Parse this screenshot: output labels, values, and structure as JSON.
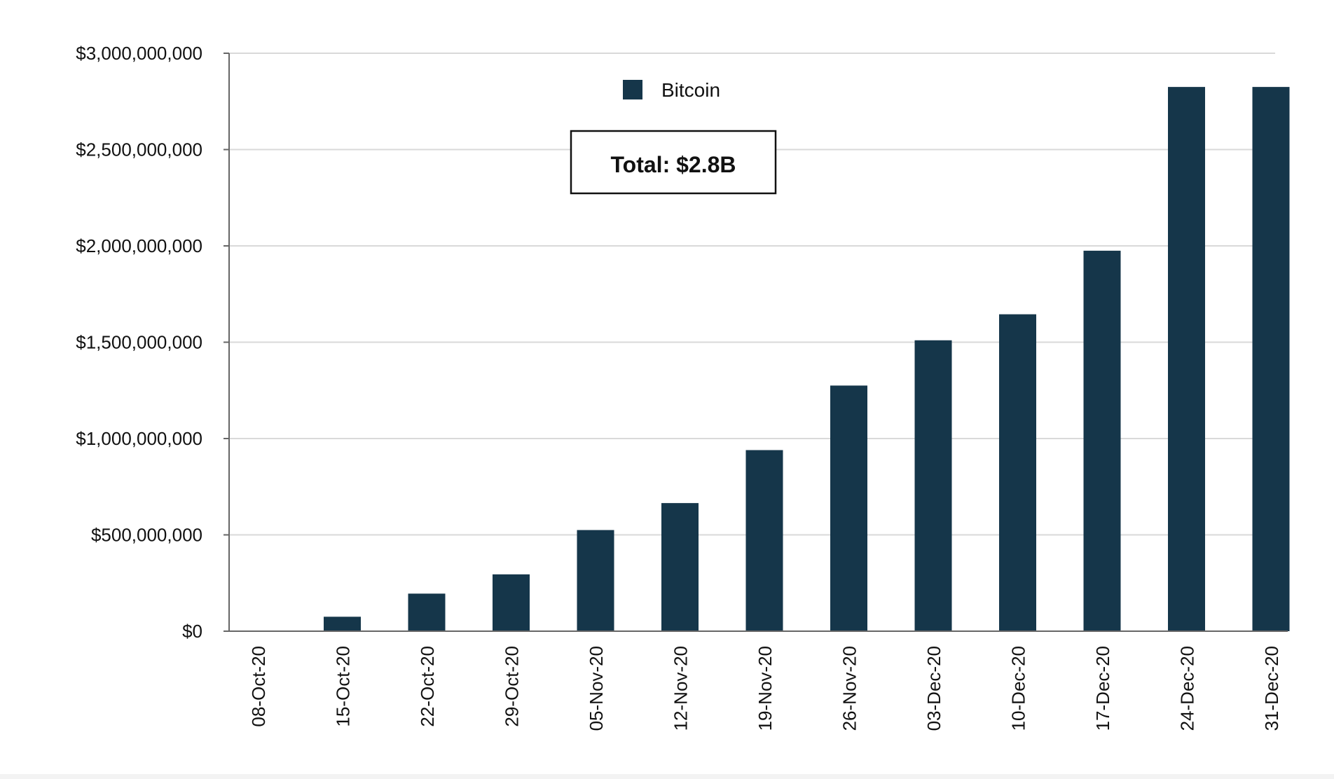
{
  "chart_data": {
    "type": "bar",
    "categories": [
      "08-Oct-20",
      "15-Oct-20",
      "22-Oct-20",
      "29-Oct-20",
      "05-Nov-20",
      "12-Nov-20",
      "19-Nov-20",
      "26-Nov-20",
      "03-Dec-20",
      "10-Dec-20",
      "17-Dec-20",
      "24-Dec-20",
      "31-Dec-20"
    ],
    "series": [
      {
        "name": "Bitcoin",
        "color": "#15364a",
        "values": [
          0,
          75000000,
          195000000,
          295000000,
          525000000,
          665000000,
          940000000,
          1275000000,
          1510000000,
          1645000000,
          1975000000,
          2825000000,
          2825000000
        ]
      }
    ],
    "yticks": [
      {
        "value": 0,
        "label": "$0"
      },
      {
        "value": 500000000,
        "label": "$500,000,000"
      },
      {
        "value": 1000000000,
        "label": "$1,000,000,000"
      },
      {
        "value": 1500000000,
        "label": "$1,500,000,000"
      },
      {
        "value": 2000000000,
        "label": "$2,000,000,000"
      },
      {
        "value": 2500000000,
        "label": "$2,500,000,000"
      },
      {
        "value": 3000000000,
        "label": "$3,000,000,000"
      }
    ],
    "ylim": [
      0,
      3000000000
    ],
    "grid": true,
    "legend_position": "top-center",
    "annotation": "Total: $2.8B",
    "title": "",
    "xlabel": "",
    "ylabel": ""
  }
}
